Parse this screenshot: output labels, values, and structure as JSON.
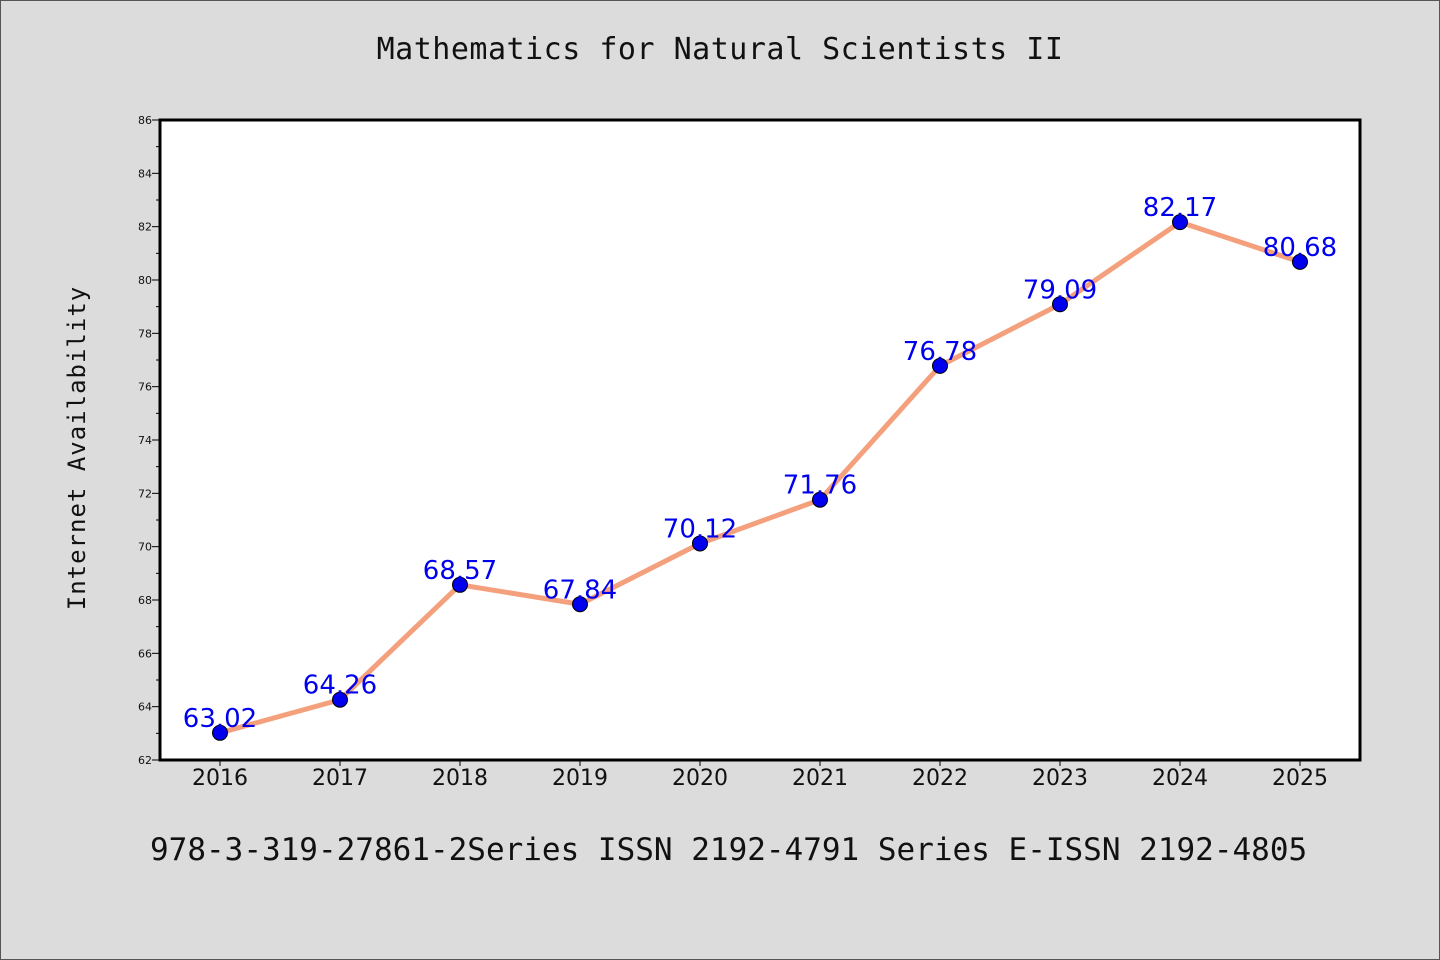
{
  "title": "Mathematics for Natural Scientists II",
  "footer": "978-3-319-27861-2Series ISSN 2192-4791 Series E-ISSN 2192-4805",
  "chart_data": {
    "type": "line",
    "title": "Mathematics for Natural Scientists II",
    "xlabel": "",
    "ylabel": "Internet Availability",
    "categories": [
      "2016",
      "2017",
      "2018",
      "2019",
      "2020",
      "2021",
      "2022",
      "2023",
      "2024",
      "2025"
    ],
    "values": [
      63.02,
      64.26,
      68.57,
      67.84,
      70.12,
      71.76,
      76.78,
      79.09,
      82.17,
      80.68
    ],
    "value_labels": [
      "63.02",
      "64.26",
      "68.57",
      "67.84",
      "70.12",
      "71.76",
      "76.78",
      "79.09",
      "82.17",
      "80.68"
    ],
    "ylim": [
      62,
      86
    ],
    "yticks": [
      "62",
      "64",
      "66",
      "68",
      "70",
      "72",
      "74",
      "76",
      "78",
      "80",
      "82",
      "84",
      "86"
    ],
    "grid": false,
    "legend": "none",
    "colors": {
      "line": "#f4a07c",
      "marker": "#0000ee",
      "label": "#0000ee",
      "background": "#dcdcdc",
      "plot_bg": "#ffffff"
    }
  }
}
